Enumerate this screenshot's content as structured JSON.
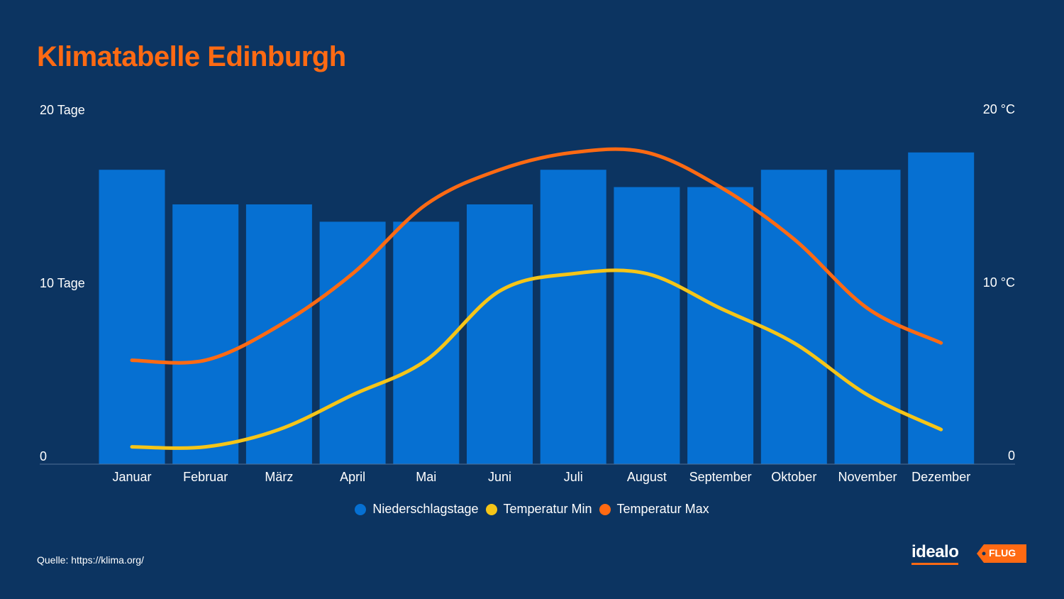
{
  "title": "Klimatabelle Edinburgh",
  "axis": {
    "left_top": "20 Tage",
    "left_mid": "10 Tage",
    "left_zero": "0",
    "right_top": "20 °C",
    "right_mid": "10 °C",
    "right_zero": "0"
  },
  "colors": {
    "bars": "#0670d2",
    "temp_min": "#f5c518",
    "temp_max": "#ff6a13",
    "title": "#ff6a13",
    "background": "#0c3461"
  },
  "chart_data": {
    "type": "bar",
    "categories": [
      "Januar",
      "Februar",
      "März",
      "April",
      "Mai",
      "Juni",
      "Juli",
      "August",
      "September",
      "Oktober",
      "November",
      "Dezember"
    ],
    "series": [
      {
        "name": "Niederschlagstage",
        "type": "bar",
        "axis": "left",
        "values": [
          17,
          15,
          15,
          14,
          14,
          15,
          17,
          16,
          16,
          17,
          17,
          18
        ]
      },
      {
        "name": "Temperatur Min",
        "type": "line",
        "axis": "right",
        "values": [
          1,
          1,
          2,
          4,
          6,
          10,
          11,
          11,
          9,
          7,
          4,
          2
        ]
      },
      {
        "name": "Temperatur Max",
        "type": "line",
        "axis": "right",
        "values": [
          6,
          6,
          8,
          11,
          15,
          17,
          18,
          18,
          16,
          13,
          9,
          7
        ]
      }
    ],
    "ylim_left": [
      0,
      20
    ],
    "ylim_right": [
      0,
      20
    ],
    "legend_position": "bottom-center"
  },
  "source": "Quelle: https://klima.org/",
  "logo": {
    "brand": "idealo",
    "tag": "FLUG"
  }
}
